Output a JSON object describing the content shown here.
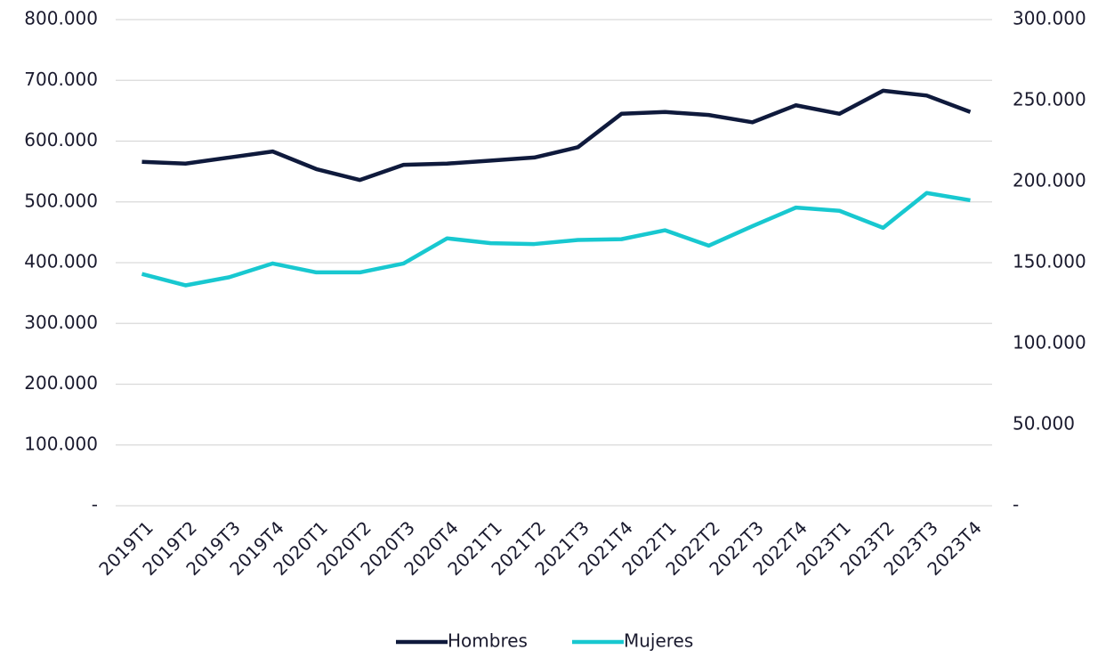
{
  "chart_data": {
    "type": "line",
    "categories": [
      "2019T1",
      "2019T2",
      "2019T3",
      "2019T4",
      "2020T1",
      "2020T2",
      "2020T3",
      "2020T4",
      "2021T1",
      "2021T2",
      "2021T3",
      "2021T4",
      "2022T1",
      "2022T2",
      "2022T3",
      "2022T4",
      "2023T1",
      "2023T2",
      "2023T3",
      "2023T4"
    ],
    "series": [
      {
        "name": "Hombres",
        "color": "#0f1a3c",
        "values": [
          566000,
          563000,
          573000,
          583000,
          554000,
          536000,
          561000,
          563000,
          568000,
          573000,
          590000,
          645000,
          648000,
          643000,
          631000,
          659000,
          645000,
          683000,
          675000,
          648000
        ]
      },
      {
        "name": "Mujeres",
        "color": "#18c8d0",
        "axis": "y2",
        "values": [
          143000,
          136000,
          141000,
          149500,
          144000,
          144000,
          149500,
          165000,
          162000,
          161500,
          164000,
          164500,
          170000,
          160500,
          172500,
          184000,
          182000,
          171500,
          193000,
          188500
        ]
      }
    ],
    "ylim": [
      0,
      800000
    ],
    "yticks": [
      {
        "value": 0,
        "label": "-"
      },
      {
        "value": 100000,
        "label": "100.000"
      },
      {
        "value": 200000,
        "label": "200.000"
      },
      {
        "value": 300000,
        "label": "300.000"
      },
      {
        "value": 400000,
        "label": "400.000"
      },
      {
        "value": 500000,
        "label": "500.000"
      },
      {
        "value": 600000,
        "label": "600.000"
      },
      {
        "value": 700000,
        "label": "700.000"
      },
      {
        "value": 800000,
        "label": "800.000"
      }
    ],
    "y2lim": [
      0,
      300000
    ],
    "y2ticks": [
      {
        "value": 0,
        "label": "-"
      },
      {
        "value": 50000,
        "label": "50.000"
      },
      {
        "value": 100000,
        "label": "100.000"
      },
      {
        "value": 150000,
        "label": "150.000"
      },
      {
        "value": 200000,
        "label": "200.000"
      },
      {
        "value": 250000,
        "label": "250.000"
      },
      {
        "value": 300000,
        "label": "300.000"
      }
    ],
    "grid": true,
    "legend": "bottom"
  }
}
